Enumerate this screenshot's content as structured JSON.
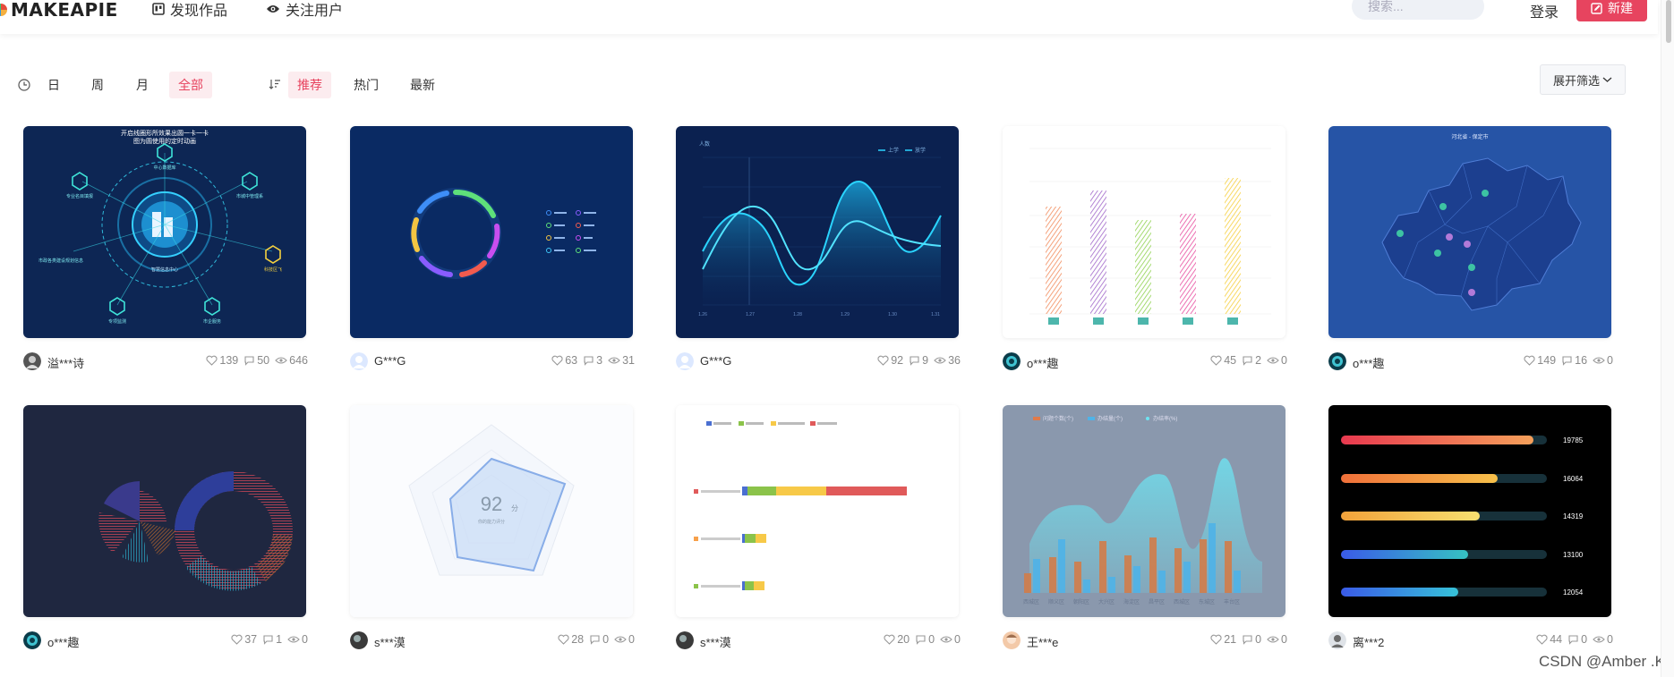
{
  "header": {
    "logo": "MAKEAPIE",
    "nav": [
      {
        "label": "发现作品",
        "icon": "board-icon"
      },
      {
        "label": "关注用户",
        "icon": "eye-icon"
      }
    ],
    "search_placeholder": "搜索...",
    "login_label": "登录",
    "new_label": "新建"
  },
  "filters": {
    "time": [
      "日",
      "周",
      "月",
      "全部"
    ],
    "time_active": "全部",
    "sort": [
      "推荐",
      "热门",
      "最新"
    ],
    "sort_active": "推荐",
    "expand_label": "展开筛选"
  },
  "cards": [
    {
      "author": "溢***诗",
      "likes": "139",
      "comments": "50",
      "views": "646"
    },
    {
      "author": "G***G",
      "likes": "63",
      "comments": "3",
      "views": "31"
    },
    {
      "author": "G***G",
      "likes": "92",
      "comments": "9",
      "views": "36"
    },
    {
      "author": "o***趣",
      "likes": "45",
      "comments": "2",
      "views": "0"
    },
    {
      "author": "o***趣",
      "likes": "149",
      "comments": "16",
      "views": "0"
    },
    {
      "author": "o***趣",
      "likes": "37",
      "comments": "1",
      "views": "0"
    },
    {
      "author": "s***漠",
      "likes": "28",
      "comments": "0",
      "views": "0"
    },
    {
      "author": "s***漠",
      "likes": "20",
      "comments": "0",
      "views": "0"
    },
    {
      "author": "王***e",
      "likes": "21",
      "comments": "0",
      "views": "0"
    },
    {
      "author": "离***2",
      "likes": "44",
      "comments": "0",
      "views": "0"
    }
  ],
  "thumb_text": {
    "t1_title_a": "开启线圈形所效果出圆一卡一卡",
    "t1_title_b": "图为圆使用的定时动画",
    "t1_nodes": [
      "智慧信息中心",
      "中心数据库",
      "专业名目填报",
      "市城中管理系",
      "市政各类建设规划信息",
      "科技区飞",
      "专项监测",
      "市企服务"
    ],
    "t3_legend": [
      "上学",
      "放学"
    ],
    "t3_ylabel": "人数",
    "t3_x": [
      "1.26",
      "1.27",
      "1.28",
      "1.29",
      "1.30",
      "1.31"
    ],
    "t5_title": "河北省 - 保定市",
    "t7_score": "92",
    "t7_unit": "分",
    "t7_sub": "你的能力评分",
    "t10_values": [
      "19785",
      "16064",
      "14319",
      "13100",
      "12054"
    ],
    "t9_legend": [
      "问题个数(个)",
      "办结量(个)",
      "办结率(%)"
    ],
    "t9_x": [
      "西城区",
      "顺义区",
      "朝阳区",
      "大兴区",
      "海淀区",
      "昌平区",
      "西城区",
      "东城区",
      "丰台区"
    ]
  },
  "watermark": "CSDN @Amber .K"
}
